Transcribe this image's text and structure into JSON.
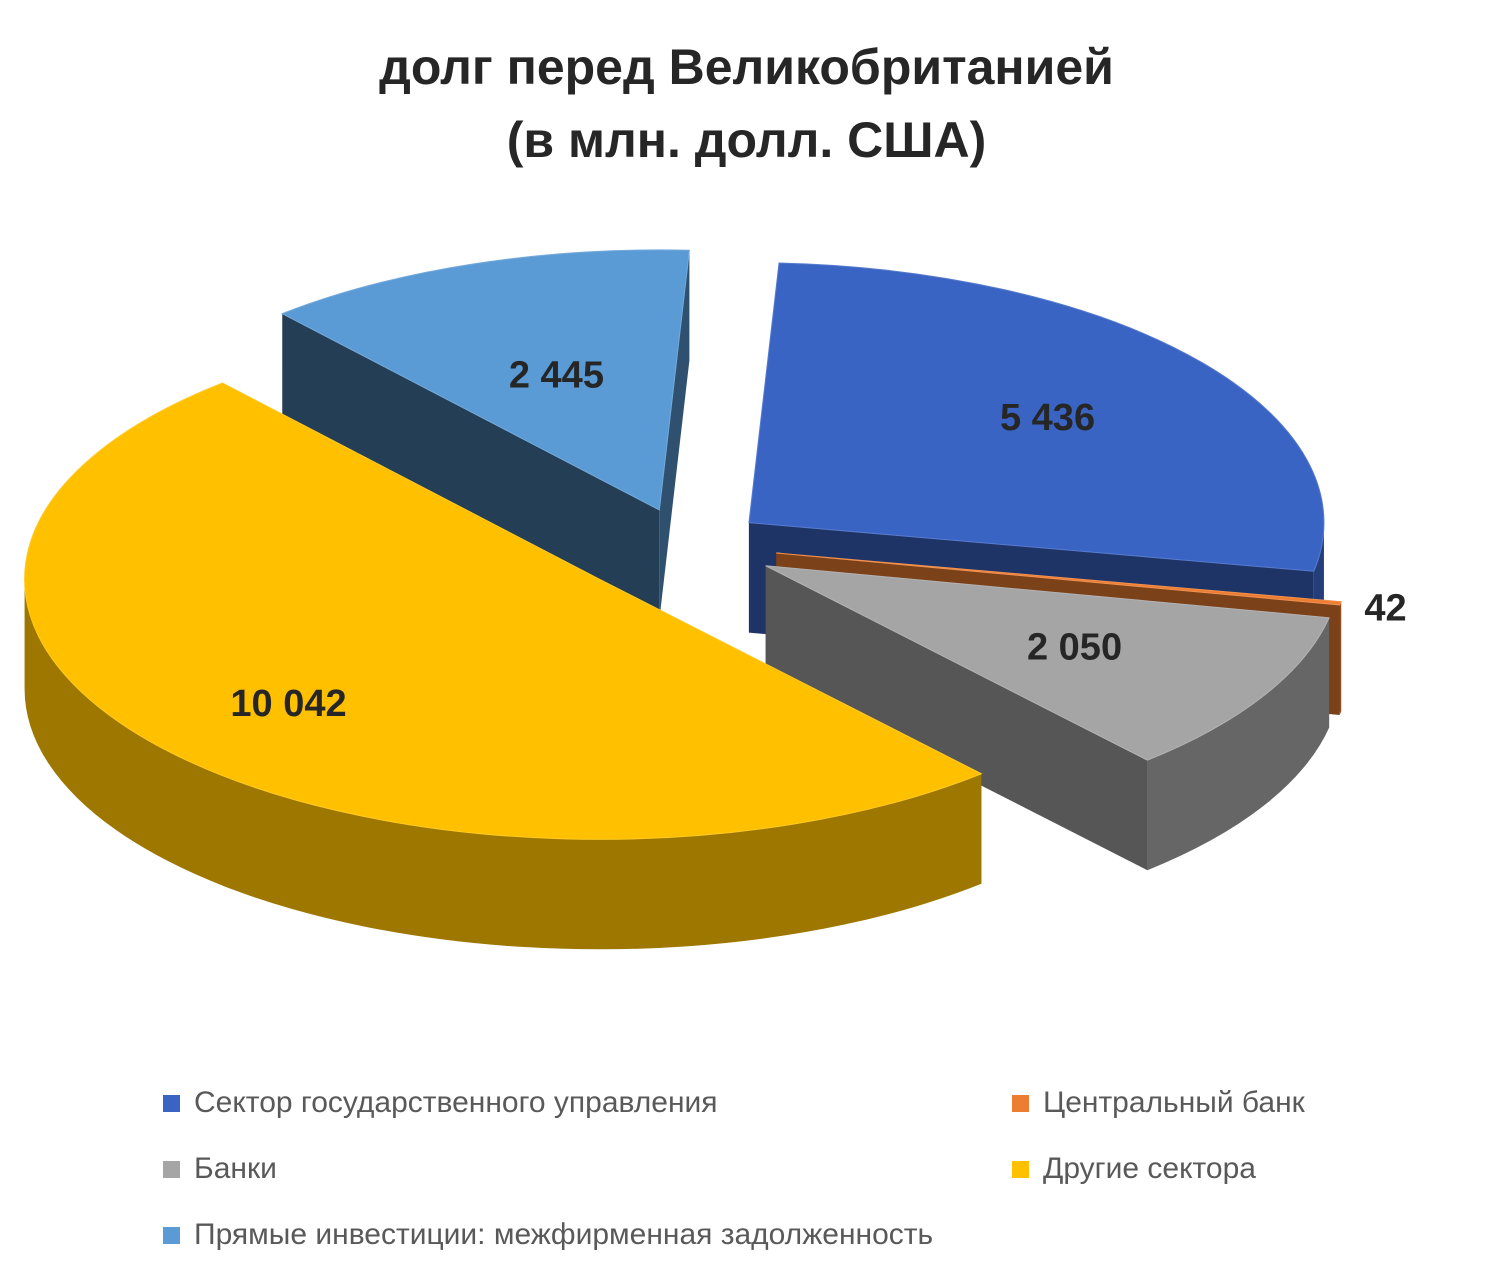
{
  "chart_data": {
    "type": "pie",
    "title_lines": [
      "долг перед Великобританией",
      "(в млн. долл. США)"
    ],
    "slices": [
      {
        "label": "Сектор государственного управления",
        "value": 5436,
        "value_label": "5 436",
        "color": "#3A64C4"
      },
      {
        "label": "Центральный банк",
        "value": 42,
        "value_label": "42",
        "color": "#ED7D31"
      },
      {
        "label": "Банки",
        "value": 2050,
        "value_label": "2 050",
        "color": "#A5A5A5"
      },
      {
        "label": "Другие сектора",
        "value": 10042,
        "value_label": "10 042",
        "color": "#FFC000"
      },
      {
        "label": "Прямые инвестиции: межфирменная задолженность",
        "value": 2445,
        "value_label": "2 445",
        "color": "#5B9BD5"
      }
    ],
    "legend_position": "bottom",
    "style": "3d-exploded"
  }
}
